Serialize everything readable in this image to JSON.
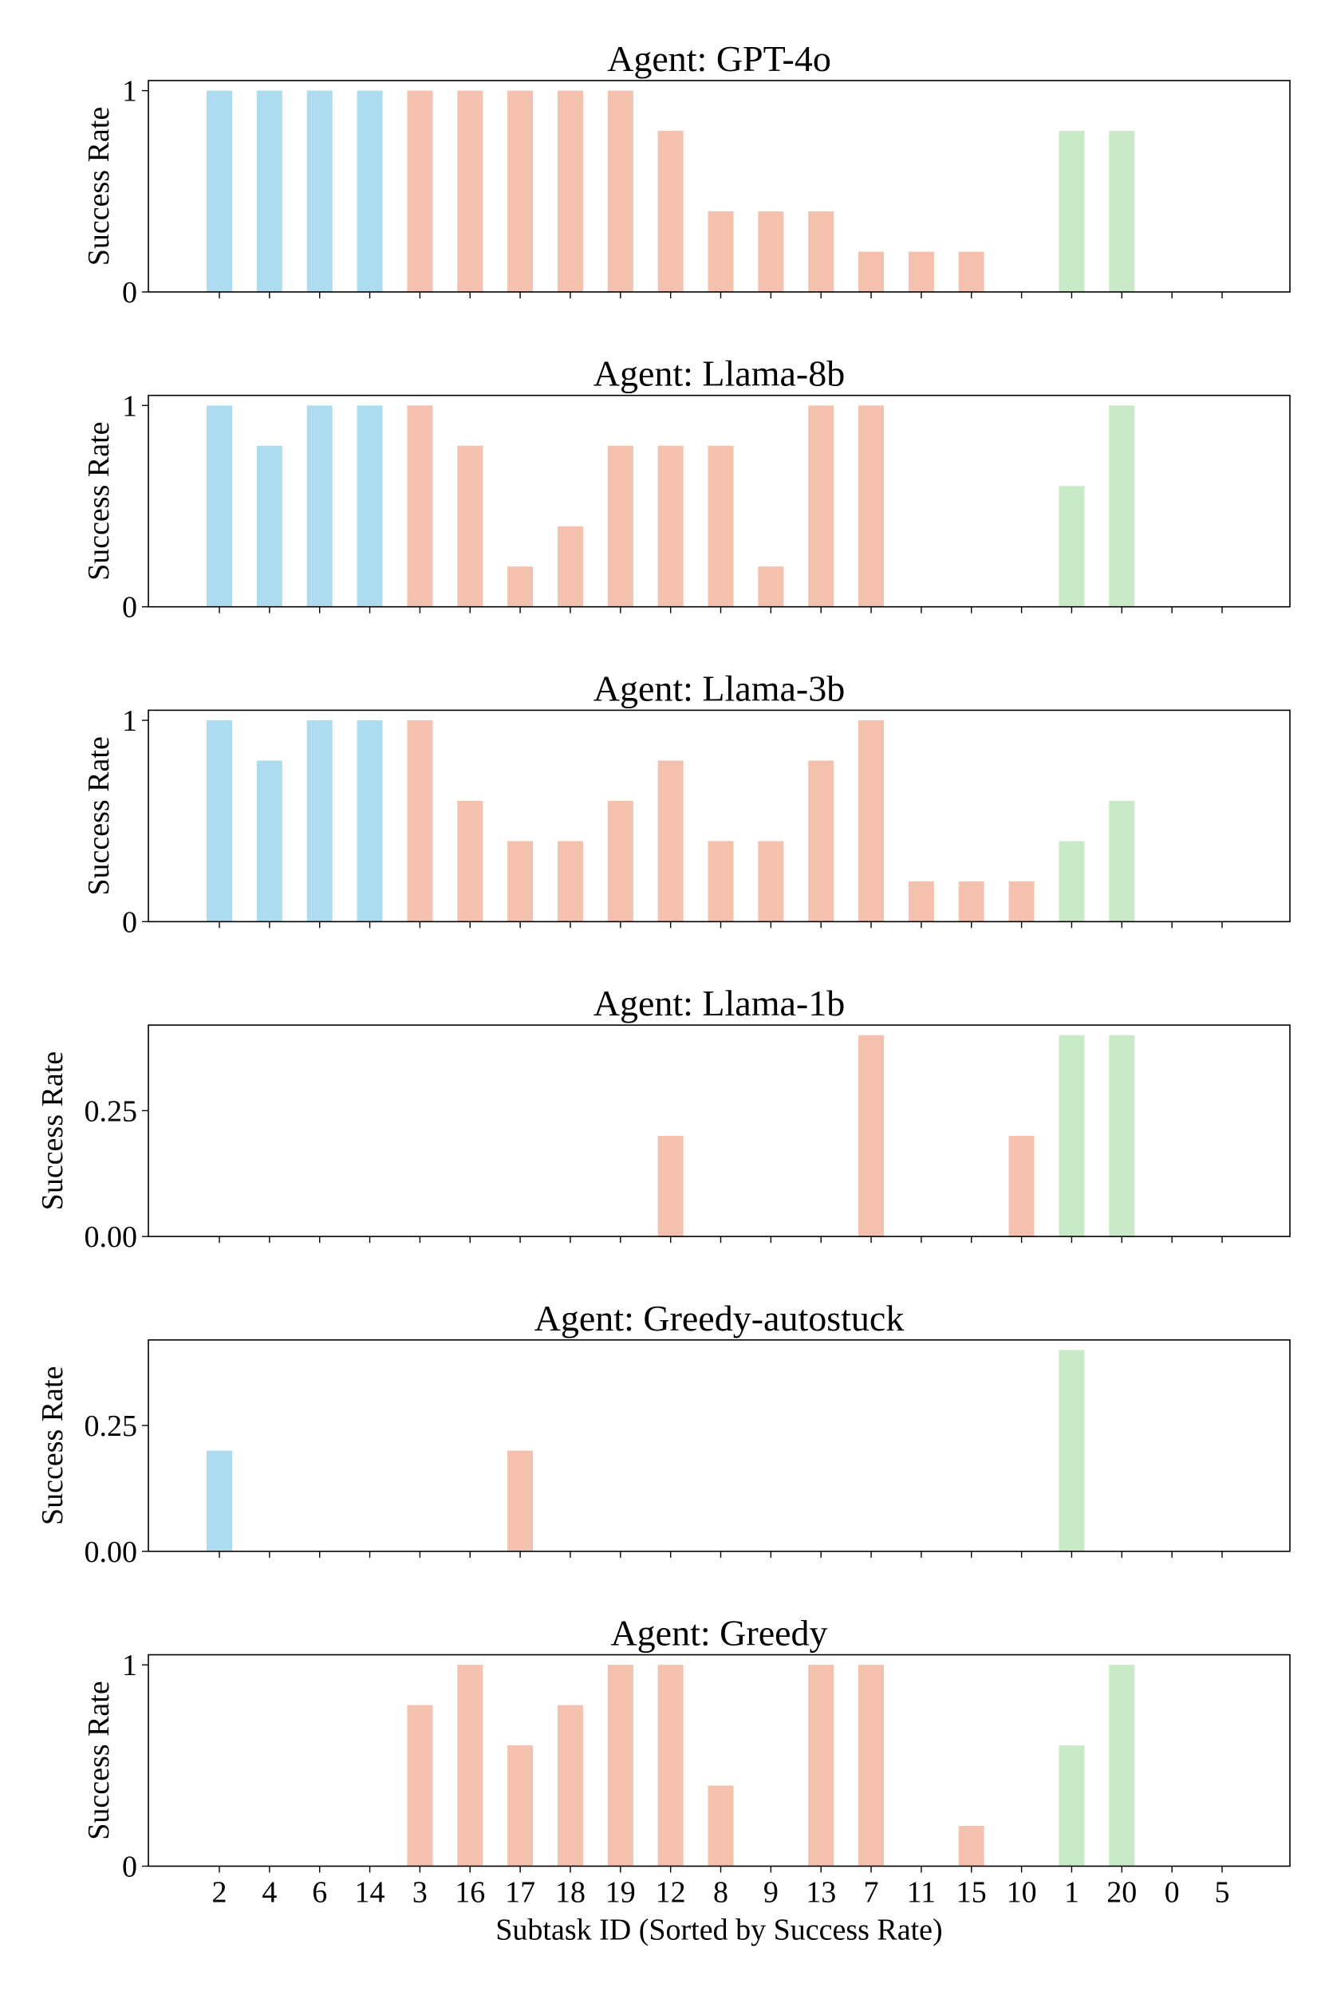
{
  "colors": {
    "blue": "#ADDCF0",
    "salmon": "#F3C1AD",
    "green": "#C9EAC6"
  },
  "chart_data": [
    {
      "type": "bar",
      "title": "Agent: GPT-4o",
      "ylabel": "Success Rate",
      "xlabel": "",
      "ylim": [
        0,
        1.05
      ],
      "yticks": [
        0,
        1
      ],
      "ytick_labels": [
        "0",
        "1"
      ],
      "categories": [
        "2",
        "4",
        "6",
        "14",
        "3",
        "16",
        "17",
        "18",
        "19",
        "12",
        "8",
        "9",
        "13",
        "7",
        "11",
        "15",
        "10",
        "1",
        "20",
        "0",
        "5"
      ],
      "groups": [
        "blue",
        "blue",
        "blue",
        "blue",
        "salmon",
        "salmon",
        "salmon",
        "salmon",
        "salmon",
        "salmon",
        "salmon",
        "salmon",
        "salmon",
        "salmon",
        "salmon",
        "salmon",
        "salmon",
        "green",
        "green",
        "green",
        "green"
      ],
      "values": [
        1,
        1,
        1,
        1,
        1,
        1,
        1,
        1,
        1,
        0.8,
        0.4,
        0.4,
        0.4,
        0.2,
        0.2,
        0.2,
        0,
        0.8,
        0.8,
        0,
        0
      ]
    },
    {
      "type": "bar",
      "title": "Agent: Llama-8b",
      "ylabel": "Success Rate",
      "xlabel": "",
      "ylim": [
        0,
        1.05
      ],
      "yticks": [
        0,
        1
      ],
      "ytick_labels": [
        "0",
        "1"
      ],
      "categories": [
        "2",
        "4",
        "6",
        "14",
        "3",
        "16",
        "17",
        "18",
        "19",
        "12",
        "8",
        "9",
        "13",
        "7",
        "11",
        "15",
        "10",
        "1",
        "20",
        "0",
        "5"
      ],
      "groups": [
        "blue",
        "blue",
        "blue",
        "blue",
        "salmon",
        "salmon",
        "salmon",
        "salmon",
        "salmon",
        "salmon",
        "salmon",
        "salmon",
        "salmon",
        "salmon",
        "salmon",
        "salmon",
        "salmon",
        "green",
        "green",
        "green",
        "green"
      ],
      "values": [
        1,
        0.8,
        1,
        1,
        1,
        0.8,
        0.2,
        0.4,
        0.8,
        0.8,
        0.8,
        0.2,
        1,
        1,
        0,
        0,
        0,
        0.6,
        1,
        0,
        0
      ]
    },
    {
      "type": "bar",
      "title": "Agent: Llama-3b",
      "ylabel": "Success Rate",
      "xlabel": "",
      "ylim": [
        0,
        1.05
      ],
      "yticks": [
        0,
        1
      ],
      "ytick_labels": [
        "0",
        "1"
      ],
      "categories": [
        "2",
        "4",
        "6",
        "14",
        "3",
        "16",
        "17",
        "18",
        "19",
        "12",
        "8",
        "9",
        "13",
        "7",
        "11",
        "15",
        "10",
        "1",
        "20",
        "0",
        "5"
      ],
      "groups": [
        "blue",
        "blue",
        "blue",
        "blue",
        "salmon",
        "salmon",
        "salmon",
        "salmon",
        "salmon",
        "salmon",
        "salmon",
        "salmon",
        "salmon",
        "salmon",
        "salmon",
        "salmon",
        "salmon",
        "green",
        "green",
        "green",
        "green"
      ],
      "values": [
        1,
        0.8,
        1,
        1,
        1,
        0.6,
        0.4,
        0.4,
        0.6,
        0.8,
        0.4,
        0.4,
        0.8,
        1,
        0.2,
        0.2,
        0.2,
        0.4,
        0.6,
        0,
        0
      ]
    },
    {
      "type": "bar",
      "title": "Agent: Llama-1b",
      "ylabel": "Success Rate",
      "xlabel": "",
      "ylim": [
        0,
        0.42
      ],
      "yticks": [
        0,
        0.25
      ],
      "ytick_labels": [
        "0.00",
        "0.25"
      ],
      "categories": [
        "2",
        "4",
        "6",
        "14",
        "3",
        "16",
        "17",
        "18",
        "19",
        "12",
        "8",
        "9",
        "13",
        "7",
        "11",
        "15",
        "10",
        "1",
        "20",
        "0",
        "5"
      ],
      "groups": [
        "blue",
        "blue",
        "blue",
        "blue",
        "salmon",
        "salmon",
        "salmon",
        "salmon",
        "salmon",
        "salmon",
        "salmon",
        "salmon",
        "salmon",
        "salmon",
        "salmon",
        "salmon",
        "salmon",
        "green",
        "green",
        "green",
        "green"
      ],
      "values": [
        0,
        0,
        0,
        0,
        0,
        0,
        0,
        0,
        0,
        0.2,
        0,
        0,
        0,
        0.4,
        0,
        0,
        0.2,
        0.4,
        0.4,
        0,
        0
      ]
    },
    {
      "type": "bar",
      "title": "Agent: Greedy-autostuck",
      "ylabel": "Success Rate",
      "xlabel": "",
      "ylim": [
        0,
        0.42
      ],
      "yticks": [
        0,
        0.25
      ],
      "ytick_labels": [
        "0.00",
        "0.25"
      ],
      "categories": [
        "2",
        "4",
        "6",
        "14",
        "3",
        "16",
        "17",
        "18",
        "19",
        "12",
        "8",
        "9",
        "13",
        "7",
        "11",
        "15",
        "10",
        "1",
        "20",
        "0",
        "5"
      ],
      "groups": [
        "blue",
        "blue",
        "blue",
        "blue",
        "salmon",
        "salmon",
        "salmon",
        "salmon",
        "salmon",
        "salmon",
        "salmon",
        "salmon",
        "salmon",
        "salmon",
        "salmon",
        "salmon",
        "salmon",
        "green",
        "green",
        "green",
        "green"
      ],
      "values": [
        0.2,
        0,
        0,
        0,
        0,
        0,
        0.2,
        0,
        0,
        0,
        0,
        0,
        0,
        0,
        0,
        0,
        0,
        0.4,
        0,
        0,
        0
      ]
    },
    {
      "type": "bar",
      "title": "Agent: Greedy",
      "ylabel": "Success Rate",
      "xlabel": "Subtask ID (Sorted by Success Rate)",
      "ylim": [
        0,
        1.05
      ],
      "yticks": [
        0,
        1
      ],
      "ytick_labels": [
        "0",
        "1"
      ],
      "categories": [
        "2",
        "4",
        "6",
        "14",
        "3",
        "16",
        "17",
        "18",
        "19",
        "12",
        "8",
        "9",
        "13",
        "7",
        "11",
        "15",
        "10",
        "1",
        "20",
        "0",
        "5"
      ],
      "groups": [
        "blue",
        "blue",
        "blue",
        "blue",
        "salmon",
        "salmon",
        "salmon",
        "salmon",
        "salmon",
        "salmon",
        "salmon",
        "salmon",
        "salmon",
        "salmon",
        "salmon",
        "salmon",
        "salmon",
        "green",
        "green",
        "green",
        "green"
      ],
      "values": [
        0,
        0,
        0,
        0,
        0.8,
        1,
        0.6,
        0.8,
        1,
        1,
        0.4,
        0,
        1,
        1,
        0,
        0.2,
        0,
        0.6,
        1,
        0,
        0
      ]
    }
  ]
}
